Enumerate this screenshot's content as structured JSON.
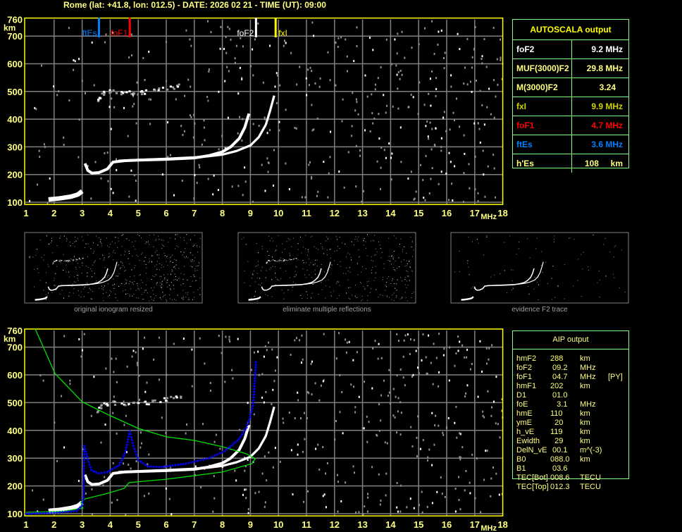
{
  "header": {
    "title": "Rome (lat: +41.8, lon: 012.5) - DATE: 2026 02 21 - TIME (UT): 09:00"
  },
  "colors": {
    "axis": "#ffff00",
    "grid": "#808080",
    "trace": "#ffffff",
    "noise": "#909090",
    "ftEs": "#0080ff",
    "foF1": "#ff0000",
    "foF2": "#ffffff",
    "fxI": "#ffff00",
    "profile": "#00e000",
    "model": "#0000ff",
    "table_border": "#80ff80"
  },
  "autoscala": {
    "title": "AUTOSCALA output",
    "rows": [
      {
        "label": "foF2",
        "value": "9.2 MHz",
        "color": "#ffffff"
      },
      {
        "label": "MUF(3000)F2",
        "value": "29.8 MHz",
        "color": "#ffff80"
      },
      {
        "label": "M(3000)F2",
        "value": "3.24   ",
        "color": "#ffff80"
      },
      {
        "label": "fxI",
        "value": "9.9 MHz",
        "color": "#d0d000"
      },
      {
        "label": "foF1",
        "value": "4.7 MHz",
        "color": "#ff0000"
      },
      {
        "label": "ftEs",
        "value": "3.6 MHz",
        "color": "#0080ff"
      },
      {
        "label": "h'Es",
        "value": "108     km",
        "color": "#ffff80"
      }
    ]
  },
  "aip": {
    "title": "AIP output",
    "rows": [
      {
        "label": "hmF2",
        "value": "288",
        "unit": "km",
        "extra": ""
      },
      {
        "label": "foF2",
        "value": " 09.2",
        "unit": "MHz",
        "extra": ""
      },
      {
        "label": "foF1",
        "value": " 04.7",
        "unit": "MHz",
        "extra": "[PY]"
      },
      {
        "label": "hmF1",
        "value": "202",
        "unit": "km",
        "extra": ""
      },
      {
        "label": "D1",
        "value": " 01.0",
        "unit": "",
        "extra": ""
      },
      {
        "label": "foE",
        "value": "   3.1",
        "unit": "MHz",
        "extra": ""
      },
      {
        "label": "hmE",
        "value": "110",
        "unit": "km",
        "extra": ""
      },
      {
        "label": "ymE",
        "value": "  20",
        "unit": "km",
        "extra": ""
      },
      {
        "label": "h_vE",
        "value": "119",
        "unit": "km",
        "extra": ""
      },
      {
        "label": "Ewidth",
        "value": "  29",
        "unit": "km",
        "extra": ""
      },
      {
        "label": "DelN_vE",
        "value": " 00.1",
        "unit": "m^(-3)",
        "extra": ""
      },
      {
        "label": "B0",
        "value": "088.0",
        "unit": "km",
        "extra": ""
      },
      {
        "label": "B1",
        "value": " 03.6",
        "unit": "",
        "extra": ""
      },
      {
        "label": "TEC[Bot]",
        "value": "008.6",
        "unit": "TECU",
        "extra": ""
      },
      {
        "label": "TEC[Top]",
        "value": "012.3",
        "unit": "TECU",
        "extra": ""
      }
    ]
  },
  "thumbnails": [
    {
      "caption": "original ionogram resized"
    },
    {
      "caption": "eliminate multiple reflections"
    },
    {
      "caption": "evidence F2 trace"
    }
  ],
  "chart_data": {
    "type": "scatter",
    "title": "",
    "xlabel": "MHz",
    "ylabel": "km",
    "xlim": [
      1,
      18
    ],
    "ylim": [
      100,
      760
    ],
    "xticks": [
      "1",
      "2",
      "3",
      "4",
      "5",
      "6",
      "7",
      "8",
      "9",
      "10",
      "11",
      "12",
      "13",
      "14",
      "15",
      "16",
      "17",
      "18"
    ],
    "yticks": [
      "100",
      "200",
      "300",
      "400",
      "500",
      "600",
      "700",
      "760"
    ],
    "grid": true,
    "markers": [
      {
        "name": "ftEs",
        "freq": 3.6
      },
      {
        "name": "foF1",
        "freq": 4.7
      },
      {
        "name": "foF2",
        "freq": 9.2
      },
      {
        "name": "fxI",
        "freq": 9.9
      }
    ],
    "traces": {
      "o_trace": [
        [
          3.1,
          240
        ],
        [
          3.2,
          215
        ],
        [
          3.35,
          205
        ],
        [
          3.6,
          207
        ],
        [
          3.9,
          220
        ],
        [
          4.1,
          245
        ],
        [
          4.5,
          250
        ],
        [
          5,
          252
        ],
        [
          6,
          255
        ],
        [
          7,
          260
        ],
        [
          7.5,
          268
        ],
        [
          8,
          282
        ],
        [
          8.3,
          300
        ],
        [
          8.6,
          330
        ],
        [
          8.8,
          370
        ],
        [
          8.95,
          420
        ]
      ],
      "x_trace": [
        [
          4.3,
          250
        ],
        [
          5,
          253
        ],
        [
          6,
          257
        ],
        [
          7,
          262
        ],
        [
          7.5,
          266
        ],
        [
          8,
          272
        ],
        [
          8.5,
          285
        ],
        [
          9,
          305
        ],
        [
          9.3,
          335
        ],
        [
          9.55,
          380
        ],
        [
          9.7,
          430
        ],
        [
          9.85,
          485
        ]
      ],
      "e_trace": [
        [
          1.8,
          110
        ],
        [
          2.2,
          114
        ],
        [
          2.6,
          120
        ],
        [
          2.85,
          128
        ],
        [
          3.0,
          140
        ]
      ],
      "multiple_reflection": [
        [
          3.5,
          470
        ],
        [
          3.7,
          497
        ],
        [
          4,
          502
        ],
        [
          4.5,
          498
        ],
        [
          5,
          497
        ],
        [
          5.5,
          505
        ],
        [
          6,
          515
        ],
        [
          6.5,
          525
        ]
      ],
      "electron_density_profile": [
        [
          1.33,
          765
        ],
        [
          2.03,
          605
        ],
        [
          3,
          503
        ],
        [
          4,
          453
        ],
        [
          5,
          407
        ],
        [
          6,
          377
        ],
        [
          7,
          364
        ],
        [
          8,
          341
        ],
        [
          8.85,
          316
        ],
        [
          9.17,
          298
        ],
        [
          9.05,
          280
        ],
        [
          8,
          250
        ],
        [
          6,
          224
        ],
        [
          4.67,
          212
        ],
        [
          4.5,
          191
        ],
        [
          3.9,
          173
        ],
        [
          3.1,
          153
        ],
        [
          2.95,
          140
        ],
        [
          3.03,
          120
        ],
        [
          2.3,
          108
        ],
        [
          1,
          105
        ]
      ],
      "model_virtual_height": [
        [
          1,
          100
        ],
        [
          2,
          103
        ],
        [
          2.8,
          110
        ],
        [
          3.0,
          130
        ],
        [
          3.05,
          160
        ],
        [
          3.08,
          344
        ],
        [
          3.2,
          296
        ],
        [
          3.33,
          257
        ],
        [
          3.58,
          245
        ],
        [
          3.9,
          250
        ],
        [
          4.33,
          275
        ],
        [
          4.53,
          318
        ],
        [
          4.7,
          397
        ],
        [
          4.83,
          344
        ],
        [
          5.0,
          293
        ],
        [
          5.35,
          270
        ],
        [
          5.85,
          268
        ],
        [
          6.7,
          280
        ],
        [
          7.53,
          300
        ],
        [
          8.1,
          326
        ],
        [
          8.6,
          369
        ],
        [
          8.86,
          410
        ],
        [
          8.99,
          448
        ],
        [
          9.1,
          498
        ],
        [
          9.14,
          549
        ],
        [
          9.2,
          656
        ]
      ]
    }
  }
}
